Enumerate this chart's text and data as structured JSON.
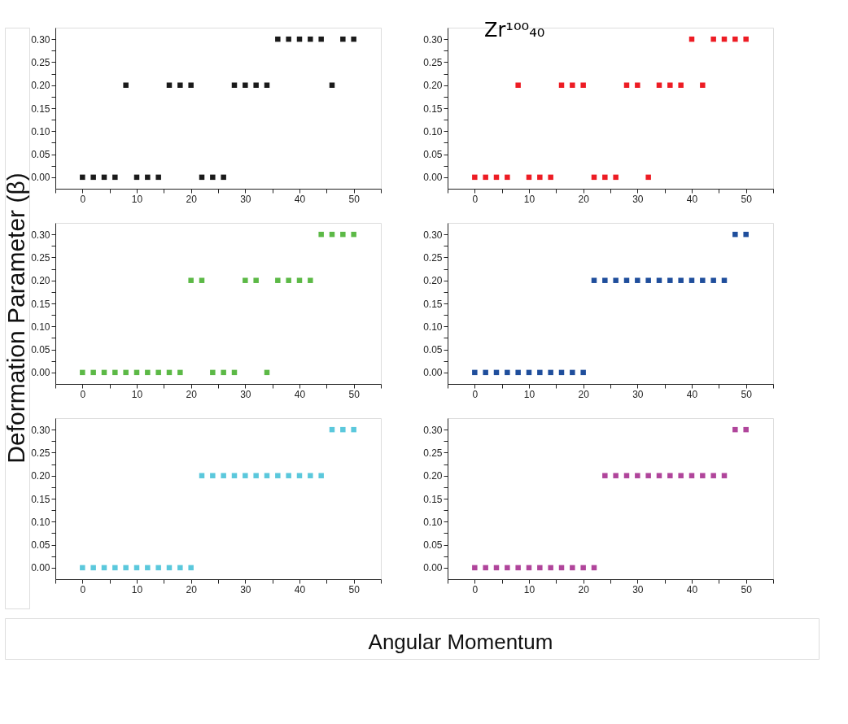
{
  "chart_data": [
    {
      "type": "scatter",
      "marker": "square",
      "ylabel": "Deformation Parameter (β)",
      "x": [
        0,
        2,
        4,
        6,
        8,
        10,
        12,
        14,
        16,
        18,
        20,
        22,
        24,
        26,
        28,
        30,
        32,
        34,
        36,
        38,
        40,
        42,
        44,
        46,
        48,
        50
      ],
      "xlim": [
        -5,
        55
      ],
      "ylim": [
        -0.025,
        0.325
      ],
      "xticks": [
        {
          "value": -5,
          "label": null
        },
        0,
        {
          "value": 5,
          "label": null
        },
        10,
        {
          "value": 15,
          "label": null
        },
        20,
        {
          "value": 25,
          "label": null
        },
        30,
        {
          "value": 35,
          "label": null
        },
        40,
        {
          "value": 45,
          "label": null
        },
        50,
        {
          "value": 55,
          "label": null
        }
      ],
      "yticks": [
        {
          "value": 0,
          "label": "0.00"
        },
        {
          "value": 0.025,
          "label": null
        },
        {
          "value": 0.05,
          "label": "0.05"
        },
        {
          "value": 0.075,
          "label": null
        },
        {
          "value": 0.1,
          "label": "0.10"
        },
        {
          "value": 0.125,
          "label": null
        },
        {
          "value": 0.15,
          "label": "0.15"
        },
        {
          "value": 0.175,
          "label": null
        },
        {
          "value": 0.2,
          "label": "0.20"
        },
        {
          "value": 0.225,
          "label": null
        },
        {
          "value": 0.25,
          "label": "0.25"
        },
        {
          "value": 0.275,
          "label": null
        },
        {
          "value": 0.3,
          "label": "0.30"
        }
      ],
      "series": [
        {
          "color": "#1a1a1a",
          "values": [
            0,
            0,
            0,
            0,
            0.2,
            0,
            0,
            0,
            0.2,
            0.2,
            0.2,
            0,
            0,
            0,
            0.2,
            0.2,
            0.2,
            0.2,
            0.3,
            0.3,
            0.3,
            0.3,
            0.3,
            0.2,
            0.3,
            0.3
          ]
        }
      ]
    },
    {
      "type": "scatter",
      "marker": "square",
      "annotations": [
        "Zr¹⁰⁰₄₀"
      ],
      "x": [
        0,
        2,
        4,
        6,
        8,
        10,
        12,
        14,
        16,
        18,
        20,
        22,
        24,
        26,
        28,
        30,
        32,
        34,
        36,
        38,
        40,
        42,
        44,
        46,
        48,
        50
      ],
      "xlim": [
        -5,
        55
      ],
      "ylim": [
        -0.025,
        0.325
      ],
      "xticks": [
        {
          "value": -5,
          "label": null
        },
        0,
        {
          "value": 5,
          "label": null
        },
        10,
        {
          "value": 15,
          "label": null
        },
        20,
        {
          "value": 25,
          "label": null
        },
        30,
        {
          "value": 35,
          "label": null
        },
        40,
        {
          "value": 45,
          "label": null
        },
        50,
        {
          "value": 55,
          "label": null
        }
      ],
      "yticks": [
        {
          "value": 0,
          "label": "0.00"
        },
        {
          "value": 0.025,
          "label": null
        },
        {
          "value": 0.05,
          "label": "0.05"
        },
        {
          "value": 0.075,
          "label": null
        },
        {
          "value": 0.1,
          "label": "0.10"
        },
        {
          "value": 0.125,
          "label": null
        },
        {
          "value": 0.15,
          "label": "0.15"
        },
        {
          "value": 0.175,
          "label": null
        },
        {
          "value": 0.2,
          "label": "0.20"
        },
        {
          "value": 0.225,
          "label": null
        },
        {
          "value": 0.25,
          "label": "0.25"
        },
        {
          "value": 0.275,
          "label": null
        },
        {
          "value": 0.3,
          "label": "0.30"
        }
      ],
      "series": [
        {
          "color": "#ed1c24",
          "values": [
            0,
            0,
            0,
            0,
            0.2,
            0,
            0,
            0,
            0.2,
            0.2,
            0.2,
            0,
            0,
            0,
            0.2,
            0.2,
            0,
            0.2,
            0.2,
            0.2,
            0.3,
            0.2,
            0.3,
            0.3,
            0.3,
            0.3
          ]
        }
      ]
    },
    {
      "type": "scatter",
      "marker": "square",
      "x": [
        0,
        2,
        4,
        6,
        8,
        10,
        12,
        14,
        16,
        18,
        20,
        22,
        24,
        26,
        28,
        30,
        32,
        34,
        36,
        38,
        40,
        42,
        44,
        46,
        48,
        50
      ],
      "xlim": [
        -5,
        55
      ],
      "ylim": [
        -0.025,
        0.325
      ],
      "xticks": [
        {
          "value": -5,
          "label": null
        },
        0,
        {
          "value": 5,
          "label": null
        },
        10,
        {
          "value": 15,
          "label": null
        },
        20,
        {
          "value": 25,
          "label": null
        },
        30,
        {
          "value": 35,
          "label": null
        },
        40,
        {
          "value": 45,
          "label": null
        },
        50,
        {
          "value": 55,
          "label": null
        }
      ],
      "yticks": [
        {
          "value": 0,
          "label": "0.00"
        },
        {
          "value": 0.025,
          "label": null
        },
        {
          "value": 0.05,
          "label": "0.05"
        },
        {
          "value": 0.075,
          "label": null
        },
        {
          "value": 0.1,
          "label": "0.10"
        },
        {
          "value": 0.125,
          "label": null
        },
        {
          "value": 0.15,
          "label": "0.15"
        },
        {
          "value": 0.175,
          "label": null
        },
        {
          "value": 0.2,
          "label": "0.20"
        },
        {
          "value": 0.225,
          "label": null
        },
        {
          "value": 0.25,
          "label": "0.25"
        },
        {
          "value": 0.275,
          "label": null
        },
        {
          "value": 0.3,
          "label": "0.30"
        }
      ],
      "series": [
        {
          "color": "#5cb946",
          "values": [
            0,
            0,
            0,
            0,
            0,
            0,
            0,
            0,
            0,
            0,
            0.2,
            0.2,
            0,
            0,
            0,
            0.2,
            0.2,
            0,
            0.2,
            0.2,
            0.2,
            0.2,
            0.3,
            0.3,
            0.3,
            0.3
          ]
        }
      ]
    },
    {
      "type": "scatter",
      "marker": "square",
      "x": [
        0,
        2,
        4,
        6,
        8,
        10,
        12,
        14,
        16,
        18,
        20,
        22,
        24,
        26,
        28,
        30,
        32,
        34,
        36,
        38,
        40,
        42,
        44,
        46,
        48,
        50
      ],
      "xlim": [
        -5,
        55
      ],
      "ylim": [
        -0.025,
        0.325
      ],
      "xticks": [
        {
          "value": -5,
          "label": null
        },
        0,
        {
          "value": 5,
          "label": null
        },
        10,
        {
          "value": 15,
          "label": null
        },
        20,
        {
          "value": 25,
          "label": null
        },
        30,
        {
          "value": 35,
          "label": null
        },
        40,
        {
          "value": 45,
          "label": null
        },
        50,
        {
          "value": 55,
          "label": null
        }
      ],
      "yticks": [
        {
          "value": 0,
          "label": "0.00"
        },
        {
          "value": 0.025,
          "label": null
        },
        {
          "value": 0.05,
          "label": "0.05"
        },
        {
          "value": 0.075,
          "label": null
        },
        {
          "value": 0.1,
          "label": "0.10"
        },
        {
          "value": 0.125,
          "label": null
        },
        {
          "value": 0.15,
          "label": "0.15"
        },
        {
          "value": 0.175,
          "label": null
        },
        {
          "value": 0.2,
          "label": "0.20"
        },
        {
          "value": 0.225,
          "label": null
        },
        {
          "value": 0.25,
          "label": "0.25"
        },
        {
          "value": 0.275,
          "label": null
        },
        {
          "value": 0.3,
          "label": "0.30"
        }
      ],
      "series": [
        {
          "color": "#1f4e9c",
          "values": [
            0,
            0,
            0,
            0,
            0,
            0,
            0,
            0,
            0,
            0,
            0,
            0.2,
            0.2,
            0.2,
            0.2,
            0.2,
            0.2,
            0.2,
            0.2,
            0.2,
            0.2,
            0.2,
            0.2,
            0.2,
            0.3,
            0.3
          ]
        }
      ]
    },
    {
      "type": "scatter",
      "marker": "square",
      "xlabel": "Angular Momentum",
      "x": [
        0,
        2,
        4,
        6,
        8,
        10,
        12,
        14,
        16,
        18,
        20,
        22,
        24,
        26,
        28,
        30,
        32,
        34,
        36,
        38,
        40,
        42,
        44,
        46,
        48,
        50
      ],
      "xlim": [
        -5,
        55
      ],
      "ylim": [
        -0.025,
        0.325
      ],
      "xticks": [
        {
          "value": -5,
          "label": null
        },
        0,
        {
          "value": 5,
          "label": null
        },
        10,
        {
          "value": 15,
          "label": null
        },
        20,
        {
          "value": 25,
          "label": null
        },
        30,
        {
          "value": 35,
          "label": null
        },
        40,
        {
          "value": 45,
          "label": null
        },
        50,
        {
          "value": 55,
          "label": null
        }
      ],
      "yticks": [
        {
          "value": 0,
          "label": "0.00"
        },
        {
          "value": 0.025,
          "label": null
        },
        {
          "value": 0.05,
          "label": "0.05"
        },
        {
          "value": 0.075,
          "label": null
        },
        {
          "value": 0.1,
          "label": "0.10"
        },
        {
          "value": 0.125,
          "label": null
        },
        {
          "value": 0.15,
          "label": "0.15"
        },
        {
          "value": 0.175,
          "label": null
        },
        {
          "value": 0.2,
          "label": "0.20"
        },
        {
          "value": 0.225,
          "label": null
        },
        {
          "value": 0.25,
          "label": "0.25"
        },
        {
          "value": 0.275,
          "label": null
        },
        {
          "value": 0.3,
          "label": "0.30"
        }
      ],
      "series": [
        {
          "color": "#5bc8dc",
          "values": [
            0,
            0,
            0,
            0,
            0,
            0,
            0,
            0,
            0,
            0,
            0,
            0.2,
            0.2,
            0.2,
            0.2,
            0.2,
            0.2,
            0.2,
            0.2,
            0.2,
            0.2,
            0.2,
            0.2,
            0.3,
            0.3,
            0.3
          ]
        }
      ]
    },
    {
      "type": "scatter",
      "marker": "square",
      "x": [
        0,
        2,
        4,
        6,
        8,
        10,
        12,
        14,
        16,
        18,
        20,
        22,
        24,
        26,
        28,
        30,
        32,
        34,
        36,
        38,
        40,
        42,
        44,
        46,
        48,
        50
      ],
      "xlim": [
        -5,
        55
      ],
      "ylim": [
        -0.025,
        0.325
      ],
      "xticks": [
        {
          "value": -5,
          "label": null
        },
        0,
        {
          "value": 5,
          "label": null
        },
        10,
        {
          "value": 15,
          "label": null
        },
        20,
        {
          "value": 25,
          "label": null
        },
        30,
        {
          "value": 35,
          "label": null
        },
        40,
        {
          "value": 45,
          "label": null
        },
        50,
        {
          "value": 55,
          "label": null
        }
      ],
      "yticks": [
        {
          "value": 0,
          "label": "0.00"
        },
        {
          "value": 0.025,
          "label": null
        },
        {
          "value": 0.05,
          "label": "0.05"
        },
        {
          "value": 0.075,
          "label": null
        },
        {
          "value": 0.1,
          "label": "0.10"
        },
        {
          "value": 0.125,
          "label": null
        },
        {
          "value": 0.15,
          "label": "0.15"
        },
        {
          "value": 0.175,
          "label": null
        },
        {
          "value": 0.2,
          "label": "0.20"
        },
        {
          "value": 0.225,
          "label": null
        },
        {
          "value": 0.25,
          "label": "0.25"
        },
        {
          "value": 0.275,
          "label": null
        },
        {
          "value": 0.3,
          "label": "0.30"
        }
      ],
      "series": [
        {
          "color": "#b0459b",
          "values": [
            0,
            0,
            0,
            0,
            0,
            0,
            0,
            0,
            0,
            0,
            0,
            0,
            0.2,
            0.2,
            0.2,
            0.2,
            0.2,
            0.2,
            0.2,
            0.2,
            0.2,
            0.2,
            0.2,
            0.2,
            0.3,
            0.3
          ]
        }
      ]
    }
  ]
}
